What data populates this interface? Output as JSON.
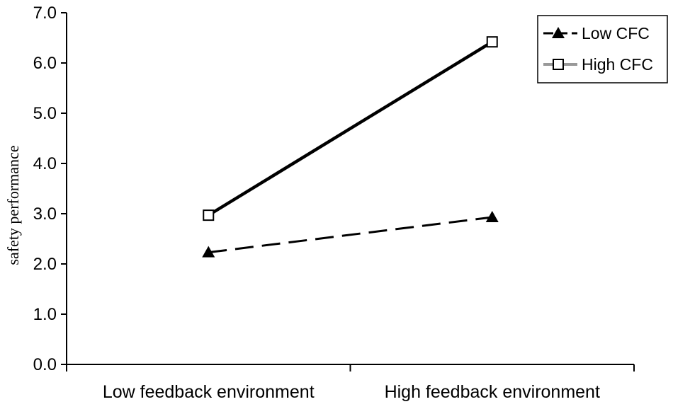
{
  "chart_data": {
    "type": "line",
    "title": "",
    "xlabel": "",
    "ylabel": "safety performance",
    "categories": [
      "Low feedback environment",
      "High feedback  environment"
    ],
    "ylim": [
      0,
      7
    ],
    "yticks": [
      0,
      1,
      2,
      3,
      4,
      5,
      6,
      7
    ],
    "ytick_labels": [
      "0.0",
      "1.0",
      "2.0",
      "3.0",
      "4.0",
      "5.0",
      "6.0",
      "7.0"
    ],
    "grid": false,
    "legend_position": "top-right",
    "series": [
      {
        "name": "Low CFC",
        "values": [
          2.23,
          2.93
        ],
        "line_style": "dashed",
        "marker": "filled-triangle",
        "color": "#000000"
      },
      {
        "name": "High CFC",
        "values": [
          2.97,
          6.42
        ],
        "line_style": "solid",
        "marker": "open-square",
        "color": "#000000",
        "legend_line_color": "#999999"
      }
    ]
  }
}
